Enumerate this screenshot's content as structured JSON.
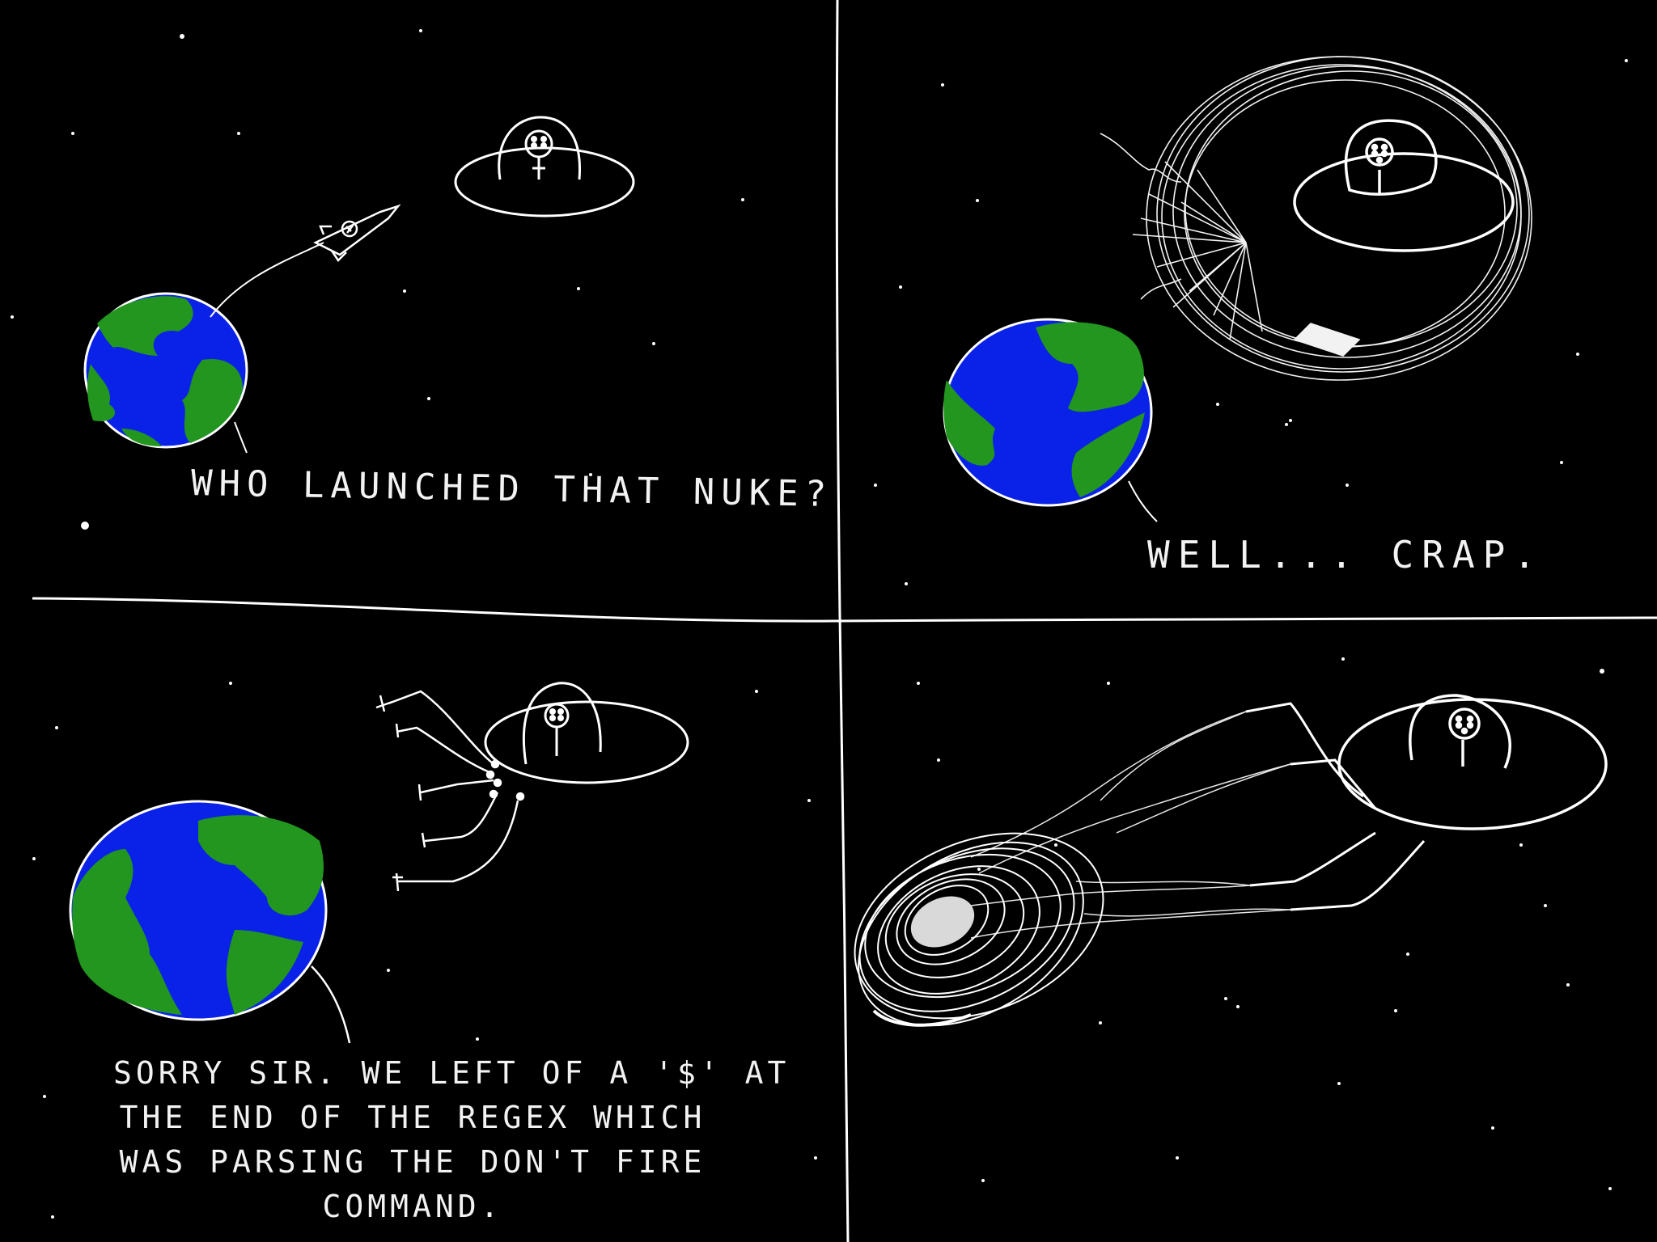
{
  "panels": [
    {
      "id": 1,
      "caption": "WHO LAUNCHED THAT NUKE?"
    },
    {
      "id": 2,
      "caption": "WELL... CRAP."
    },
    {
      "id": 3,
      "caption_lines": [
        "SORRY SIR. WE LEFT OF A '$' AT",
        "THE END OF THE REGEX WHICH",
        "WAS PARSING THE DON'T FIRE",
        "COMMAND."
      ]
    },
    {
      "id": 4,
      "caption": ""
    }
  ],
  "colors": {
    "background": "#000000",
    "ink": "#ffffff",
    "ocean": "#0a22e8",
    "land": "#22961e"
  }
}
